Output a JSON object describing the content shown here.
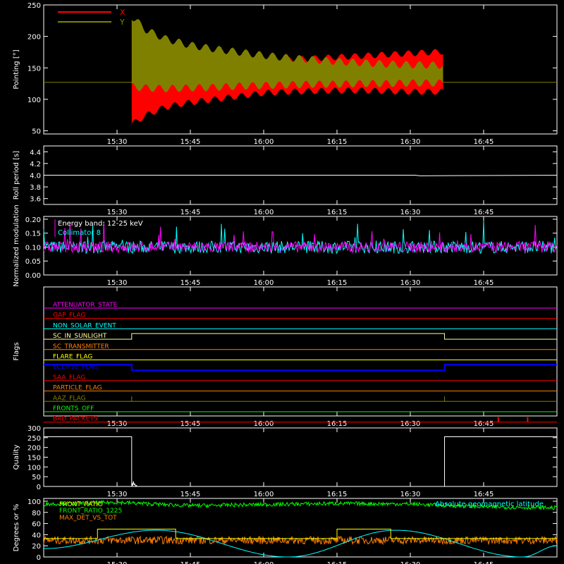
{
  "chart_data": [
    {
      "id": "pointing",
      "type": "area",
      "ylabel": "Pointing [°]",
      "ylim": [
        45,
        250
      ],
      "yticks": [
        50,
        100,
        150,
        200,
        250
      ],
      "xlim": [
        "15:15",
        "17:00"
      ],
      "xticks": [
        "15:30",
        "15:45",
        "16:00",
        "16:15",
        "16:30",
        "16:45"
      ],
      "legend_position": "top-left",
      "series": [
        {
          "name": "X",
          "color": "#ff0000",
          "x": [
            "15:33",
            "15:36",
            "15:40",
            "15:45",
            "15:50",
            "15:55",
            "16:00",
            "16:05",
            "16:10",
            "16:15",
            "16:20",
            "16:25",
            "16:30",
            "16:37"
          ],
          "upper": [
            128,
            145,
            150,
            150,
            152,
            156,
            160,
            163,
            165,
            167,
            169,
            171,
            173,
            176
          ],
          "lower": [
            60,
            75,
            88,
            95,
            100,
            105,
            110,
            112,
            113,
            114,
            114,
            113,
            112,
            112
          ]
        },
        {
          "name": "Y",
          "color": "#808000",
          "x": [
            "15:33",
            "15:36",
            "15:40",
            "15:45",
            "15:50",
            "15:55",
            "16:00",
            "16:05",
            "16:10",
            "16:15",
            "16:20",
            "16:25",
            "16:30",
            "16:37"
          ],
          "upper": [
            232,
            210,
            196,
            186,
            180,
            175,
            170,
            166,
            163,
            160,
            158,
            156,
            155,
            154
          ],
          "lower": [
            120,
            118,
            117,
            118,
            119,
            121,
            122,
            123,
            124,
            124,
            125,
            125,
            126,
            126
          ]
        }
      ],
      "baseline": 127
    },
    {
      "id": "roll",
      "type": "line",
      "ylabel": "Roll period [s]",
      "ylim": [
        3.5,
        4.5
      ],
      "yticks": [
        "3.6",
        "3.8",
        "4.0",
        "4.2",
        "4.4"
      ],
      "xticks": [
        "15:30",
        "15:45",
        "16:00",
        "16:15",
        "16:30",
        "16:45"
      ],
      "series": [
        {
          "color": "#ffffff",
          "x": [
            "15:15",
            "16:31",
            "16:32",
            "17:00"
          ],
          "y": [
            4.0,
            4.0,
            3.99,
            4.0
          ]
        }
      ]
    },
    {
      "id": "modulation",
      "type": "line",
      "ylabel": "Normalized modulation",
      "ylim": [
        0,
        0.21
      ],
      "yticks": [
        "0.00",
        "0.05",
        "0.10",
        "0.15",
        "0.20"
      ],
      "xticks": [
        "15:30",
        "15:45",
        "16:00",
        "16:15",
        "16:30",
        "16:45"
      ],
      "annotations": [
        "Energy band: 12-25 keV"
      ],
      "series": [
        {
          "name": "Collimator 8",
          "color": "#00ffff",
          "mean": 0.1,
          "spread": 0.045
        },
        {
          "color": "#ff00ff",
          "mean": 0.1,
          "spread": 0.04
        }
      ]
    },
    {
      "id": "flags",
      "type": "line",
      "ylabel": "Flags",
      "xticks": [
        "15:30",
        "15:45",
        "16:00",
        "16:15",
        "16:30",
        "16:45"
      ],
      "flags": [
        {
          "name": "ATTENUATOR_STATE",
          "color": "#ff00ff"
        },
        {
          "name": "GAP_FLAG",
          "color": "#ff0000"
        },
        {
          "name": "NON_SOLAR_EVENT",
          "color": "#00ffff"
        },
        {
          "name": "SC_IN_SUNLIGHT",
          "color": "#ffff99",
          "on": [
            [
              "15:15",
              "15:33"
            ],
            [
              "16:37",
              "17:00"
            ]
          ],
          "on_value": "low",
          "off_value": "high"
        },
        {
          "name": "SC_TRANSMITTER",
          "color": "#ff8000"
        },
        {
          "name": "FLARE_FLAG",
          "color": "#ffff00"
        },
        {
          "name": "ECLIPSE_FLAG",
          "color": "#0000ff",
          "on": [
            [
              "15:15",
              "15:33"
            ],
            [
              "16:37",
              "17:00"
            ]
          ],
          "on_value": "high",
          "off_value": "low"
        },
        {
          "name": "SAA_FLAG",
          "color": "#ff0000"
        },
        {
          "name": "PARTICLE_FLAG",
          "color": "#ff8000"
        },
        {
          "name": "AAZ_FLAG",
          "color": "#808000",
          "spikes": [
            "15:33",
            "16:37"
          ]
        },
        {
          "name": "FRONTS_OFF",
          "color": "#00ff00"
        },
        {
          "name": "BAD_PACKETS",
          "color": "#ff0000",
          "spikes": [
            "16:48",
            "16:54"
          ]
        }
      ]
    },
    {
      "id": "quality",
      "type": "line",
      "ylabel": "Quality",
      "ylim": [
        0,
        300
      ],
      "yticks": [
        0,
        50,
        100,
        150,
        200,
        250,
        300
      ],
      "xticks": [
        "15:30",
        "15:45",
        "16:00",
        "16:15",
        "16:30",
        "16:45"
      ],
      "series": [
        {
          "color": "#ffffff",
          "segments": [
            {
              "x": [
                "15:15",
                "15:33"
              ],
              "y": [
                255,
                255
              ]
            },
            {
              "x": [
                "16:37",
                "17:00"
              ],
              "y": [
                255,
                255
              ]
            }
          ]
        }
      ]
    },
    {
      "id": "degrees",
      "type": "line",
      "ylabel": "Degrees or %",
      "ylim": [
        0,
        105
      ],
      "yticks": [
        0,
        20,
        40,
        60,
        80,
        100
      ],
      "xticks": [
        "15:30",
        "15:45",
        "16:00",
        "16:15",
        "16:30",
        "16:45"
      ],
      "series": [
        {
          "name": "FRONT_RATIO",
          "color": "#ffff00",
          "x": [
            "15:15",
            "15:26",
            "15:26",
            "15:42",
            "15:42",
            "16:15",
            "16:15",
            "16:26",
            "16:26",
            "17:00"
          ],
          "y": [
            33,
            33,
            50,
            50,
            33,
            33,
            50,
            50,
            33,
            33
          ]
        },
        {
          "name": "FRONT_RATIO_1225",
          "color": "#00ff00",
          "x": [
            "15:15",
            "15:30",
            "15:45",
            "16:00",
            "16:15",
            "16:30",
            "16:45",
            "17:00"
          ],
          "y": [
            95,
            98,
            92,
            94,
            96,
            95,
            90,
            88
          ]
        },
        {
          "name": "MAX_DET_VS_TOT",
          "color": "#ff8000",
          "x": [
            "15:15",
            "17:00"
          ],
          "y": [
            30,
            30
          ]
        },
        {
          "name": "Absolute geomagnetic latitude",
          "color": "#00ffff",
          "x": [
            "15:15",
            "15:38",
            "16:05",
            "16:27",
            "16:53",
            "17:00"
          ],
          "y": [
            15,
            48,
            0,
            48,
            0,
            20
          ]
        }
      ]
    }
  ]
}
